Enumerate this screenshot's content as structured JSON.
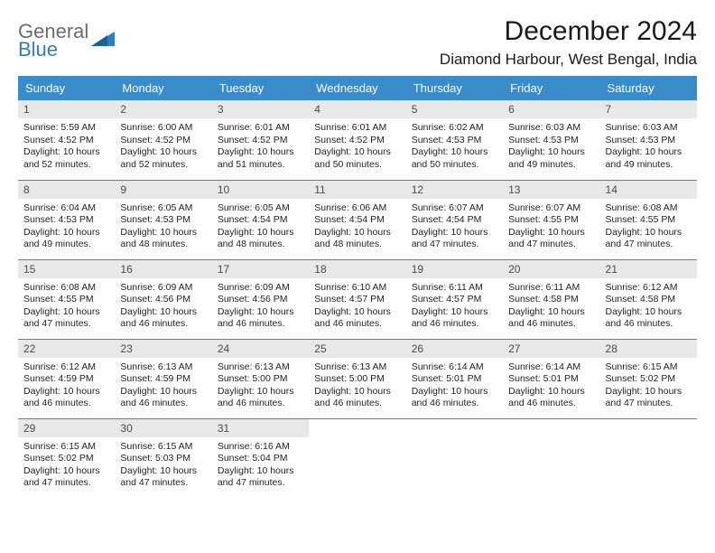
{
  "brand": {
    "line1": "General",
    "line2": "Blue"
  },
  "title": "December 2024",
  "location": "Diamond Harbour, West Bengal, India",
  "colors": {
    "header_bg": "#3a8bc9",
    "header_fg": "#ffffff",
    "daynum_bg": "#e8e8e8",
    "border": "#3a8bc9",
    "brand_gray": "#6b6b6b",
    "brand_blue": "#2d7ec0"
  },
  "typography": {
    "title_fontsize": 30,
    "location_fontsize": 17,
    "header_fontsize": 13,
    "body_fontsize": 10.5
  },
  "weekdays": [
    "Sunday",
    "Monday",
    "Tuesday",
    "Wednesday",
    "Thursday",
    "Friday",
    "Saturday"
  ],
  "weeks": [
    [
      {
        "n": "1",
        "sr": "Sunrise: 5:59 AM",
        "ss": "Sunset: 4:52 PM",
        "dl": "Daylight: 10 hours and 52 minutes."
      },
      {
        "n": "2",
        "sr": "Sunrise: 6:00 AM",
        "ss": "Sunset: 4:52 PM",
        "dl": "Daylight: 10 hours and 52 minutes."
      },
      {
        "n": "3",
        "sr": "Sunrise: 6:01 AM",
        "ss": "Sunset: 4:52 PM",
        "dl": "Daylight: 10 hours and 51 minutes."
      },
      {
        "n": "4",
        "sr": "Sunrise: 6:01 AM",
        "ss": "Sunset: 4:52 PM",
        "dl": "Daylight: 10 hours and 50 minutes."
      },
      {
        "n": "5",
        "sr": "Sunrise: 6:02 AM",
        "ss": "Sunset: 4:53 PM",
        "dl": "Daylight: 10 hours and 50 minutes."
      },
      {
        "n": "6",
        "sr": "Sunrise: 6:03 AM",
        "ss": "Sunset: 4:53 PM",
        "dl": "Daylight: 10 hours and 49 minutes."
      },
      {
        "n": "7",
        "sr": "Sunrise: 6:03 AM",
        "ss": "Sunset: 4:53 PM",
        "dl": "Daylight: 10 hours and 49 minutes."
      }
    ],
    [
      {
        "n": "8",
        "sr": "Sunrise: 6:04 AM",
        "ss": "Sunset: 4:53 PM",
        "dl": "Daylight: 10 hours and 49 minutes."
      },
      {
        "n": "9",
        "sr": "Sunrise: 6:05 AM",
        "ss": "Sunset: 4:53 PM",
        "dl": "Daylight: 10 hours and 48 minutes."
      },
      {
        "n": "10",
        "sr": "Sunrise: 6:05 AM",
        "ss": "Sunset: 4:54 PM",
        "dl": "Daylight: 10 hours and 48 minutes."
      },
      {
        "n": "11",
        "sr": "Sunrise: 6:06 AM",
        "ss": "Sunset: 4:54 PM",
        "dl": "Daylight: 10 hours and 48 minutes."
      },
      {
        "n": "12",
        "sr": "Sunrise: 6:07 AM",
        "ss": "Sunset: 4:54 PM",
        "dl": "Daylight: 10 hours and 47 minutes."
      },
      {
        "n": "13",
        "sr": "Sunrise: 6:07 AM",
        "ss": "Sunset: 4:55 PM",
        "dl": "Daylight: 10 hours and 47 minutes."
      },
      {
        "n": "14",
        "sr": "Sunrise: 6:08 AM",
        "ss": "Sunset: 4:55 PM",
        "dl": "Daylight: 10 hours and 47 minutes."
      }
    ],
    [
      {
        "n": "15",
        "sr": "Sunrise: 6:08 AM",
        "ss": "Sunset: 4:55 PM",
        "dl": "Daylight: 10 hours and 47 minutes."
      },
      {
        "n": "16",
        "sr": "Sunrise: 6:09 AM",
        "ss": "Sunset: 4:56 PM",
        "dl": "Daylight: 10 hours and 46 minutes."
      },
      {
        "n": "17",
        "sr": "Sunrise: 6:09 AM",
        "ss": "Sunset: 4:56 PM",
        "dl": "Daylight: 10 hours and 46 minutes."
      },
      {
        "n": "18",
        "sr": "Sunrise: 6:10 AM",
        "ss": "Sunset: 4:57 PM",
        "dl": "Daylight: 10 hours and 46 minutes."
      },
      {
        "n": "19",
        "sr": "Sunrise: 6:11 AM",
        "ss": "Sunset: 4:57 PM",
        "dl": "Daylight: 10 hours and 46 minutes."
      },
      {
        "n": "20",
        "sr": "Sunrise: 6:11 AM",
        "ss": "Sunset: 4:58 PM",
        "dl": "Daylight: 10 hours and 46 minutes."
      },
      {
        "n": "21",
        "sr": "Sunrise: 6:12 AM",
        "ss": "Sunset: 4:58 PM",
        "dl": "Daylight: 10 hours and 46 minutes."
      }
    ],
    [
      {
        "n": "22",
        "sr": "Sunrise: 6:12 AM",
        "ss": "Sunset: 4:59 PM",
        "dl": "Daylight: 10 hours and 46 minutes."
      },
      {
        "n": "23",
        "sr": "Sunrise: 6:13 AM",
        "ss": "Sunset: 4:59 PM",
        "dl": "Daylight: 10 hours and 46 minutes."
      },
      {
        "n": "24",
        "sr": "Sunrise: 6:13 AM",
        "ss": "Sunset: 5:00 PM",
        "dl": "Daylight: 10 hours and 46 minutes."
      },
      {
        "n": "25",
        "sr": "Sunrise: 6:13 AM",
        "ss": "Sunset: 5:00 PM",
        "dl": "Daylight: 10 hours and 46 minutes."
      },
      {
        "n": "26",
        "sr": "Sunrise: 6:14 AM",
        "ss": "Sunset: 5:01 PM",
        "dl": "Daylight: 10 hours and 46 minutes."
      },
      {
        "n": "27",
        "sr": "Sunrise: 6:14 AM",
        "ss": "Sunset: 5:01 PM",
        "dl": "Daylight: 10 hours and 46 minutes."
      },
      {
        "n": "28",
        "sr": "Sunrise: 6:15 AM",
        "ss": "Sunset: 5:02 PM",
        "dl": "Daylight: 10 hours and 47 minutes."
      }
    ],
    [
      {
        "n": "29",
        "sr": "Sunrise: 6:15 AM",
        "ss": "Sunset: 5:02 PM",
        "dl": "Daylight: 10 hours and 47 minutes."
      },
      {
        "n": "30",
        "sr": "Sunrise: 6:15 AM",
        "ss": "Sunset: 5:03 PM",
        "dl": "Daylight: 10 hours and 47 minutes."
      },
      {
        "n": "31",
        "sr": "Sunrise: 6:16 AM",
        "ss": "Sunset: 5:04 PM",
        "dl": "Daylight: 10 hours and 47 minutes."
      },
      null,
      null,
      null,
      null
    ]
  ]
}
